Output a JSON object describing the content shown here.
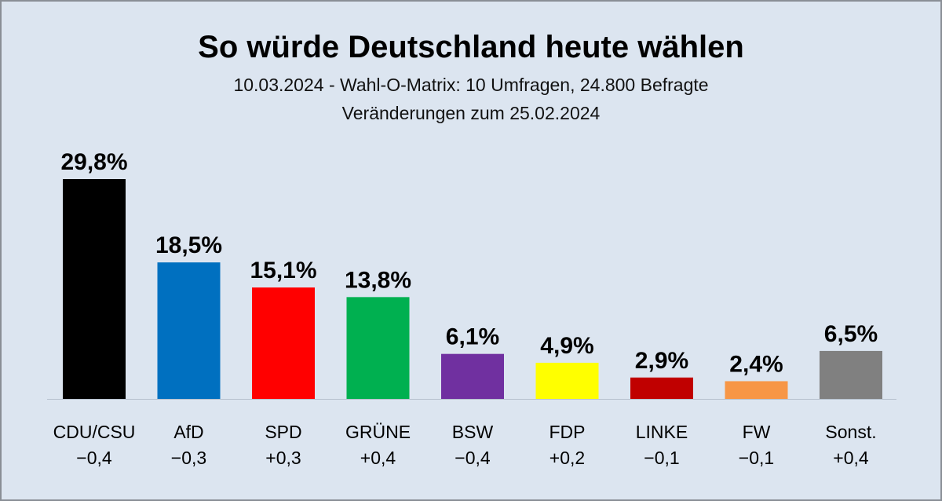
{
  "title": "So würde Deutschland heute wählen",
  "subtitle_line1": "10.03.2024 - Wahl-O-Matrix: 10 Umfragen, 24.800 Befragte",
  "subtitle_line2": "Veränderungen zum 25.02.2024",
  "chart_data": {
    "type": "bar",
    "categories": [
      "CDU/CSU",
      "AfD",
      "SPD",
      "GRÜNE",
      "BSW",
      "FDP",
      "LINKE",
      "FW",
      "Sonst."
    ],
    "values": [
      29.8,
      18.5,
      15.1,
      13.8,
      6.1,
      4.9,
      2.9,
      2.4,
      6.5
    ],
    "value_labels": [
      "29,8%",
      "18,5%",
      "15,1%",
      "13,8%",
      "6,1%",
      "4,9%",
      "2,9%",
      "2,4%",
      "6,5%"
    ],
    "changes": [
      "−0,4",
      "−0,3",
      "+0,3",
      "+0,4",
      "−0,4",
      "+0,2",
      "−0,1",
      "−0,1",
      "+0,4"
    ],
    "colors": [
      "#000000",
      "#0070c0",
      "#ff0000",
      "#00b050",
      "#7030a0",
      "#ffff00",
      "#c00000",
      "#f79646",
      "#808080"
    ],
    "ylim": [
      0,
      30
    ],
    "grid": false
  }
}
